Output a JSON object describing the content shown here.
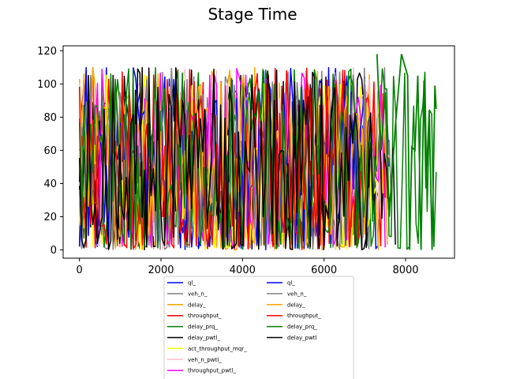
{
  "chart_data": {
    "type": "line",
    "title": "Stage Time",
    "xlabel": "",
    "ylabel": "",
    "xlim": [
      -400,
      9200
    ],
    "ylim": [
      -5,
      123
    ],
    "xticks": [
      0,
      2000,
      4000,
      6000,
      8000
    ],
    "yticks": [
      0,
      20,
      40,
      60,
      80,
      100,
      120
    ],
    "grid": false,
    "legend_position": "bottom-center",
    "legend_columns": 2,
    "series": [
      {
        "name": "ql_",
        "color": "#0000ff",
        "x_start": 0,
        "x_end": 7600,
        "seed": 1
      },
      {
        "name": "veh_n_",
        "color": "#808080",
        "x_start": 0,
        "x_end": 7650,
        "seed": 2
      },
      {
        "name": "delay_",
        "color": "#ffa500",
        "x_start": 0,
        "x_end": 7550,
        "seed": 3
      },
      {
        "name": "throughput_",
        "color": "#ff0000",
        "x_start": 0,
        "x_end": 7500,
        "seed": 4
      },
      {
        "name": "delay_prq_",
        "color": "#008000",
        "x_start": 0,
        "x_end": 8750,
        "seed": 5
      },
      {
        "name": "delay_pwtl_",
        "color": "#000000",
        "x_start": 0,
        "x_end": 7750,
        "seed": 6
      },
      {
        "name": "act_throughput_mqr_",
        "color": "#ffff00",
        "x_start": 0,
        "x_end": 7450,
        "seed": 7
      },
      {
        "name": "veh_n_pwtl_",
        "color": "#ffc0cb",
        "x_start": 0,
        "x_end": 7600,
        "seed": 8
      },
      {
        "name": "throughput_pwtl_",
        "color": "#ff00ff",
        "x_start": 0,
        "x_end": 7500,
        "seed": 9
      },
      {
        "name": "ql_",
        "color": "#0000ff",
        "x_start": 0,
        "x_end": 7000,
        "seed": 10
      },
      {
        "name": "veh_n_",
        "color": "#808080",
        "x_start": 0,
        "x_end": 7100,
        "seed": 11
      },
      {
        "name": "delay_",
        "color": "#ffa500",
        "x_start": 0,
        "x_end": 7050,
        "seed": 12
      },
      {
        "name": "throughput_",
        "color": "#ff0000",
        "x_start": 0,
        "x_end": 6900,
        "seed": 13
      },
      {
        "name": "delay_prq_",
        "color": "#008000",
        "x_start": 0,
        "x_end": 7300,
        "seed": 14
      },
      {
        "name": "delay_pwtl",
        "color": "#000000",
        "x_start": 0,
        "x_end": 7200,
        "seed": 15
      }
    ],
    "tail_series": {
      "name": "delay_prq_",
      "color": "#008000",
      "x": [
        7300,
        7400,
        7500,
        7600,
        7750,
        7900,
        8050,
        8100,
        8150,
        8230,
        8300,
        8380,
        8450,
        8500,
        8580,
        8650,
        8720,
        8750
      ],
      "y": [
        118,
        60,
        95,
        20,
        75,
        118,
        105,
        0,
        62,
        60,
        105,
        0,
        102,
        37,
        84,
        0,
        99,
        85
      ]
    }
  }
}
